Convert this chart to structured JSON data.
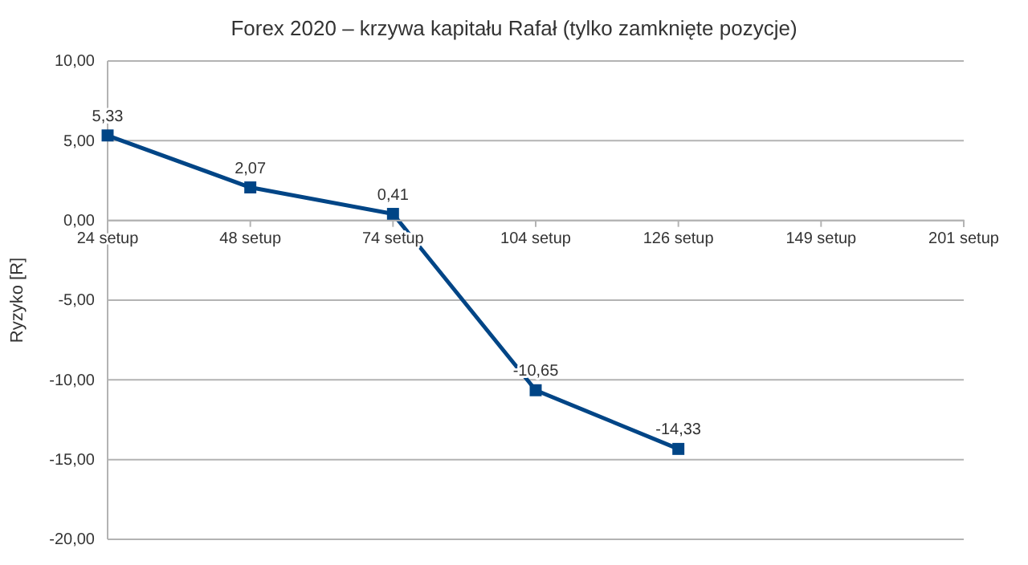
{
  "chart_data": {
    "type": "line",
    "title": "Forex 2020 – krzywa kapitału Rafał (tylko zamknięte pozycje)",
    "ylabel": "Ryzyko [R]",
    "categories": [
      "24 setup",
      "48 setup",
      "74 setup",
      "104 setup",
      "126 setup",
      "149 setup",
      "201 setup"
    ],
    "series": [
      {
        "color": "#004586",
        "values": [
          5.33,
          2.07,
          0.41,
          -10.65,
          -14.33,
          null,
          null
        ],
        "value_labels": [
          "5,33",
          "2,07",
          "0,41",
          "-10,65",
          "-14,33",
          null,
          null
        ]
      }
    ],
    "ylim": [
      -20,
      10
    ],
    "yticks": [
      {
        "value": -20,
        "label": "-20,00"
      },
      {
        "value": -15,
        "label": "-15,00"
      },
      {
        "value": -10,
        "label": "-10,00"
      },
      {
        "value": -5,
        "label": "-5,00"
      },
      {
        "value": 0,
        "label": "0,00"
      },
      {
        "value": 5,
        "label": "5,00"
      },
      {
        "value": 10,
        "label": "10,00"
      }
    ],
    "grid": "y",
    "marker": "square",
    "line_style": "solid"
  }
}
